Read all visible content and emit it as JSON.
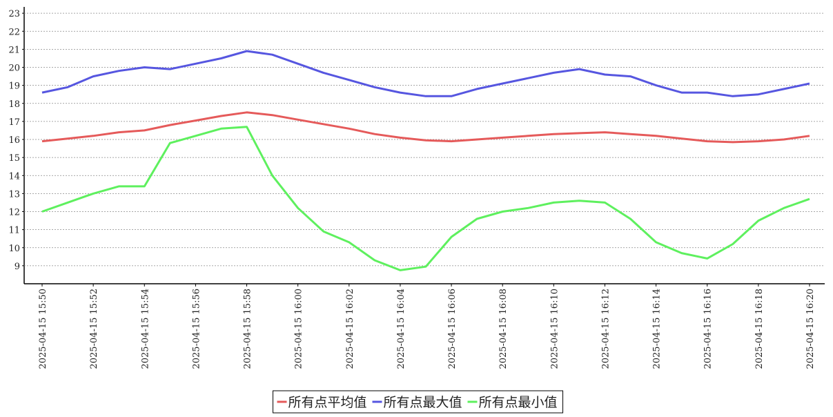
{
  "chart_data": {
    "type": "line",
    "categories": [
      "2025-04-15 15:50",
      null,
      "2025-04-15 15:52",
      null,
      "2025-04-15 15:54",
      null,
      "2025-04-15 15:56",
      null,
      "2025-04-15 15:58",
      null,
      "2025-04-15 16:00",
      null,
      "2025-04-15 16:02",
      null,
      "2025-04-15 16:04",
      null,
      "2025-04-15 16:06",
      null,
      "2025-04-15 16:08",
      null,
      "2025-04-15 16:10",
      null,
      "2025-04-15 16:12",
      null,
      "2025-04-15 16:14",
      null,
      "2025-04-15 16:16",
      null,
      "2025-04-15 16:18",
      null,
      "2025-04-15 16:20"
    ],
    "series": [
      {
        "name": "所有点平均值",
        "color": "#e55a5a",
        "values": [
          15.9,
          16.05,
          16.2,
          16.4,
          16.5,
          16.8,
          17.05,
          17.3,
          17.5,
          17.35,
          17.1,
          16.85,
          16.6,
          16.3,
          16.1,
          15.95,
          15.9,
          16.0,
          16.1,
          16.2,
          16.3,
          16.35,
          16.4,
          16.3,
          16.2,
          16.05,
          15.9,
          15.85,
          15.9,
          16.0,
          16.2
        ]
      },
      {
        "name": "所有点最大值",
        "color": "#5656e0",
        "values": [
          18.6,
          18.9,
          19.5,
          19.8,
          20.0,
          19.9,
          20.2,
          20.5,
          20.9,
          20.7,
          20.2,
          19.7,
          19.3,
          18.9,
          18.6,
          18.4,
          18.4,
          18.8,
          19.1,
          19.4,
          19.7,
          19.9,
          19.6,
          19.5,
          19.0,
          18.6,
          18.6,
          18.4,
          18.5,
          18.8,
          19.1
        ]
      },
      {
        "name": "所有点最小值",
        "color": "#5ef05e",
        "values": [
          12.0,
          12.5,
          13.0,
          13.4,
          13.4,
          15.8,
          16.2,
          16.6,
          16.7,
          14.0,
          12.2,
          10.9,
          10.3,
          9.3,
          8.75,
          8.95,
          10.6,
          11.6,
          12.0,
          12.2,
          12.5,
          12.6,
          12.5,
          11.6,
          10.3,
          9.7,
          9.4,
          10.2,
          11.5,
          12.2,
          12.7
        ]
      }
    ],
    "ylim": [
      8,
      23.35
    ],
    "yticks": [
      9,
      10,
      11,
      12,
      13,
      14,
      15,
      16,
      17,
      18,
      19,
      20,
      21,
      22,
      23
    ],
    "grid": true,
    "legend": "bottom"
  }
}
